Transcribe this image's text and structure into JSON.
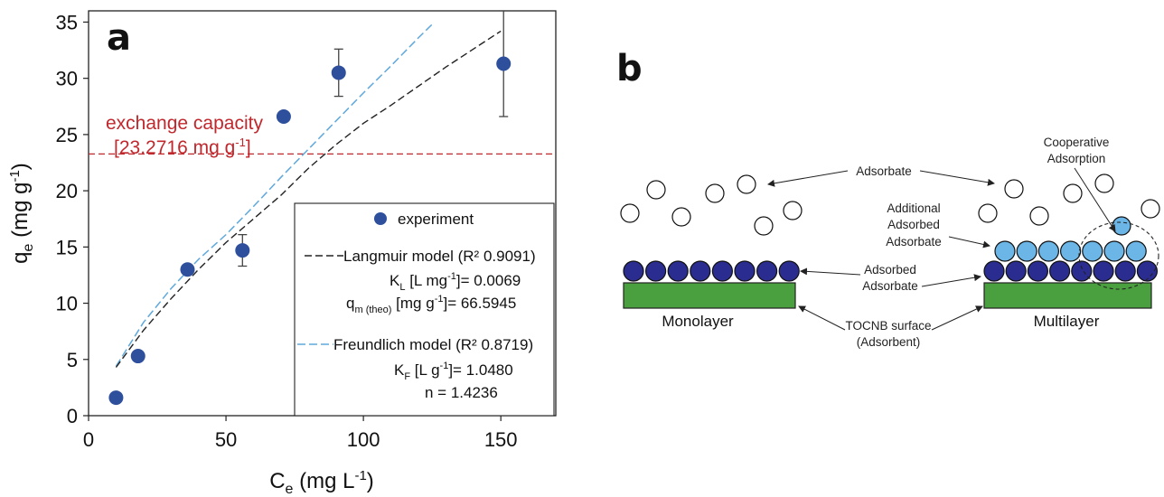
{
  "chart_data": [
    {
      "type": "scatter",
      "panel_label": "a",
      "ylabel": "q",
      "ylabel_sub": "e",
      "ylabel_unit": " (mg g",
      "ylabel_sup": "-1",
      "ylabel_close": ")",
      "xlabel": "C",
      "xlabel_sub": "e",
      "xlabel_unit": " (mg L",
      "xlabel_sup": "-1",
      "xlabel_close": ")",
      "xlim": [
        0,
        170
      ],
      "ylim": [
        0,
        36
      ],
      "x_ticks": [
        0,
        50,
        100,
        150
      ],
      "y_ticks": [
        0,
        5,
        10,
        15,
        20,
        25,
        30,
        35
      ],
      "grid": false,
      "legend_position": "bottom-right",
      "colors": {
        "experiment": "#2e4f9c",
        "langmuir": "#222222",
        "freundlich": "#5fa8dc",
        "exchange": "#c0282d"
      },
      "series": [
        {
          "name": "experiment",
          "x": [
            10,
            18,
            36,
            56,
            71,
            91,
            151
          ],
          "y": [
            1.6,
            5.3,
            13.0,
            14.7,
            26.6,
            30.5,
            31.3
          ],
          "error": [
            null,
            null,
            null,
            1.4,
            null,
            2.1,
            4.7
          ]
        },
        {
          "name": "Langmuir model",
          "x": [
            10,
            20,
            30,
            40,
            50,
            60,
            70,
            80,
            90,
            100,
            110,
            120,
            130,
            140,
            150
          ],
          "y": [
            4.3,
            7.6,
            10.4,
            13.0,
            15.4,
            17.5,
            19.6,
            22.0,
            24.1,
            26.0,
            27.6,
            29.3,
            31.0,
            32.6,
            34.2
          ]
        },
        {
          "name": "Freundlich model",
          "x": [
            10,
            20,
            30,
            40,
            50,
            60,
            70,
            80,
            90,
            100,
            110,
            120,
            125
          ],
          "y": [
            4.4,
            8.3,
            11.3,
            13.9,
            16.1,
            18.6,
            21.2,
            23.7,
            26.2,
            28.7,
            31.1,
            33.6,
            34.8
          ]
        }
      ],
      "exchange_capacity": {
        "y": 23.2716,
        "label_line1": "exchange capacity",
        "label_line2": "[23.2716 mg g-1]"
      },
      "legend": {
        "experiment": "experiment",
        "langmuir_title": "Langmuir model (R²  0.9091)",
        "kl_label": "K",
        "kl_sub": "L",
        "kl_text": " [L mg",
        "kl_sup": "-1",
        "kl_value": "]= 0.0069",
        "qm_label": "q",
        "qm_sub": "m (theo)",
        "qm_text": " [mg g",
        "qm_sup": "-1",
        "qm_value": "]= 66.5945",
        "freundlich_title": "Freundlich model (R²  0.8719)",
        "kf_label": "K",
        "kf_sub": "F",
        "kf_text": " [L g",
        "kf_sup": "-1",
        "kf_value": "]= 1.0480",
        "n_text": "n = 1.4236"
      }
    }
  ],
  "diagram": {
    "panel_label": "b",
    "adsorbate": "Adsorbate",
    "cooperative_line1": "Cooperative",
    "cooperative_line2": "Adsorption",
    "additional_line1": "Additional",
    "additional_line2": "Adsorbed",
    "additional_line3": "Adsorbate",
    "adsorbed_line1": "Adsorbed",
    "adsorbed_line2": "Adsorbate",
    "monolayer": "Monolayer",
    "multilayer": "Multilayer",
    "surface_line1": "TOCNB surface",
    "surface_line2": "(Adsorbent)",
    "colors": {
      "dark_blue": "#2a2d8f",
      "light_blue": "#6bb6e6",
      "green": "#4aa03f"
    }
  }
}
